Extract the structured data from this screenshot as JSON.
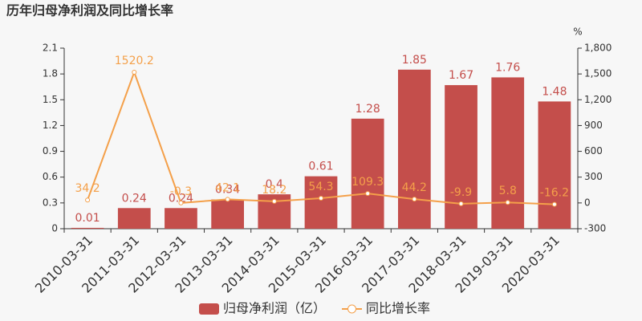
{
  "chart_data": {
    "type": "bar",
    "title": "历年归母净利润及同比增长率",
    "categories": [
      "2010-03-31",
      "2011-03-31",
      "2012-03-31",
      "2013-03-31",
      "2014-03-31",
      "2015-03-31",
      "2016-03-31",
      "2017-03-31",
      "2018-03-31",
      "2019-03-31",
      "2020-03-31"
    ],
    "series": [
      {
        "name": "归母净利润（亿）",
        "type": "bar",
        "color": "#c44e4b",
        "values": [
          0.01,
          0.24,
          0.24,
          0.34,
          0.4,
          0.61,
          1.28,
          1.85,
          1.67,
          1.76,
          1.48
        ]
      },
      {
        "name": "同比增长率",
        "type": "line",
        "axis": "y2",
        "color": "#f4a04a",
        "values": [
          34.2,
          1520.2,
          -0.3,
          42.1,
          18.2,
          54.3,
          109.3,
          44.2,
          -9.9,
          5.8,
          -16.2
        ]
      }
    ],
    "ylim": [
      0,
      2.1
    ],
    "yticks": [
      0,
      0.3,
      0.6,
      0.9,
      1.2,
      1.5,
      1.8,
      2.1
    ],
    "y2lim": [
      -300,
      1800
    ],
    "y2ticks": [
      -300,
      0,
      300,
      600,
      900,
      {
        "value": 1200,
        "label": "1,200"
      },
      {
        "value": 1500,
        "label": "1,500"
      },
      {
        "value": 1800,
        "label": "1,800"
      }
    ],
    "y2label": "%",
    "legend": "bottom"
  }
}
